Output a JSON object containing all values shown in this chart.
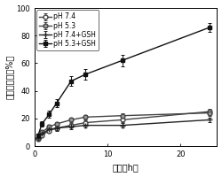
{
  "title": "",
  "xlabel": "时间（h）",
  "ylabel": "累积释放率（%）",
  "xlim": [
    0,
    25
  ],
  "ylim": [
    0,
    100
  ],
  "xticks": [
    0,
    10,
    20
  ],
  "yticks": [
    0,
    20,
    40,
    60,
    80,
    100
  ],
  "series": [
    {
      "label": "pH 7.4",
      "x": [
        0.5,
        1,
        2,
        3,
        5,
        7,
        12,
        24
      ],
      "y": [
        5,
        8,
        11,
        13,
        15,
        17,
        19,
        25
      ],
      "yerr": [
        0.8,
        1.0,
        1.2,
        1.5,
        1.5,
        1.5,
        1.5,
        2.0
      ],
      "color": "#444444",
      "marker": "o",
      "markerfacecolor": "white",
      "markeredgecolor": "#444444",
      "linewidth": 1.0,
      "markersize": 3.5
    },
    {
      "label": "pH 5.3",
      "x": [
        0.5,
        1,
        2,
        3,
        5,
        7,
        12,
        24
      ],
      "y": [
        6,
        10,
        14,
        16,
        19,
        21,
        22,
        24
      ],
      "yerr": [
        0.8,
        1.0,
        1.2,
        1.5,
        1.5,
        1.5,
        1.5,
        2.0
      ],
      "color": "#444444",
      "marker": "o",
      "markerfacecolor": "#999999",
      "markeredgecolor": "#444444",
      "linewidth": 1.0,
      "markersize": 3.5
    },
    {
      "label": "pH 7.4+GSH",
      "x": [
        0.5,
        1,
        2,
        3,
        5,
        7,
        12,
        24
      ],
      "y": [
        6,
        9,
        12,
        13,
        14,
        15,
        15,
        19
      ],
      "yerr": [
        0.8,
        1.0,
        1.5,
        2.0,
        2.0,
        1.5,
        1.5,
        1.5
      ],
      "color": "#222222",
      "marker": "+",
      "markerfacecolor": "#222222",
      "markeredgecolor": "#222222",
      "linewidth": 1.0,
      "markersize": 5
    },
    {
      "label": "pH 5.3+GSH",
      "x": [
        0.5,
        1,
        2,
        3,
        5,
        7,
        12,
        24
      ],
      "y": [
        8,
        16,
        23,
        31,
        47,
        52,
        62,
        86
      ],
      "yerr": [
        1.0,
        2.0,
        2.5,
        3.0,
        3.5,
        4.0,
        4.0,
        3.0
      ],
      "color": "#111111",
      "marker": "s",
      "markerfacecolor": "#111111",
      "markeredgecolor": "#111111",
      "linewidth": 1.0,
      "markersize": 3.5
    }
  ],
  "background_color": "#ffffff",
  "legend_fontsize": 5.5,
  "axis_fontsize": 7,
  "tick_fontsize": 6
}
